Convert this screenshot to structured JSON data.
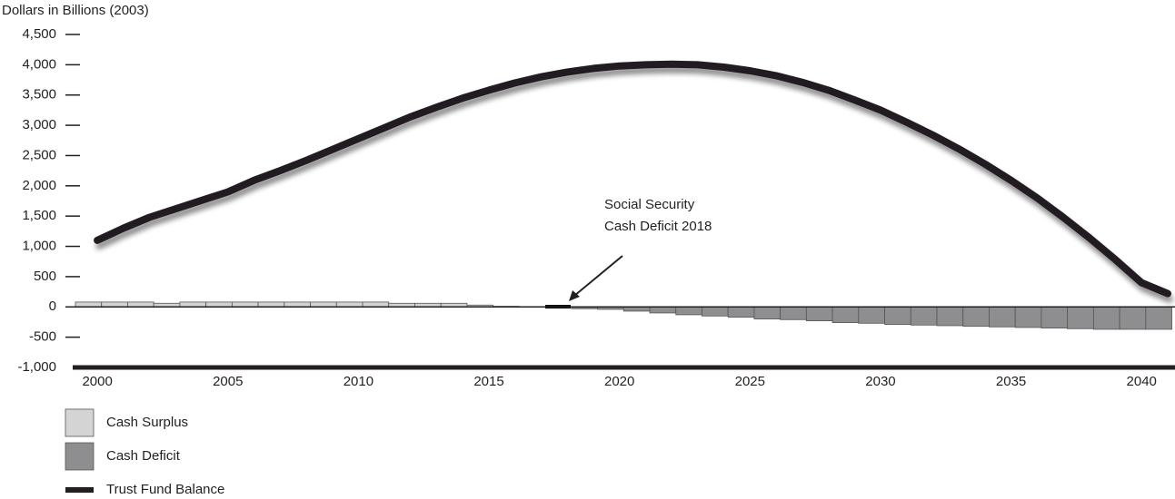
{
  "chart_data": {
    "type": "bar",
    "y_axis_label": "Dollars in Billions (2003)",
    "annotation": [
      "Social Security",
      "Cash Deficit 2018"
    ],
    "x": [
      2000,
      2001,
      2002,
      2003,
      2004,
      2005,
      2006,
      2007,
      2008,
      2009,
      2010,
      2011,
      2012,
      2013,
      2014,
      2015,
      2016,
      2017,
      2018,
      2019,
      2020,
      2021,
      2022,
      2023,
      2024,
      2025,
      2026,
      2027,
      2028,
      2029,
      2030,
      2031,
      2032,
      2033,
      2034,
      2035,
      2036,
      2037,
      2038,
      2039,
      2040,
      2041
    ],
    "series": [
      {
        "name": "Cash Surplus",
        "type": "bar",
        "color": "#d4d4d4",
        "values": [
          80,
          80,
          80,
          60,
          80,
          80,
          80,
          80,
          80,
          80,
          80,
          80,
          60,
          60,
          60,
          30,
          10,
          5,
          null,
          null,
          null,
          null,
          null,
          null,
          null,
          null,
          null,
          null,
          null,
          null,
          null,
          null,
          null,
          null,
          null,
          null,
          null,
          null,
          null,
          null,
          null,
          null
        ]
      },
      {
        "name": "Cash Deficit",
        "type": "bar",
        "color": "#8e8e90",
        "values": [
          null,
          null,
          null,
          null,
          null,
          null,
          null,
          null,
          null,
          null,
          null,
          null,
          null,
          null,
          null,
          null,
          null,
          null,
          null,
          -30,
          -40,
          -70,
          -100,
          -130,
          -150,
          -170,
          -200,
          -210,
          -230,
          -260,
          -270,
          -290,
          -300,
          -310,
          -320,
          -330,
          -340,
          -350,
          -360,
          -370,
          -370,
          -370
        ]
      },
      {
        "name": "Trust Fund Balance",
        "type": "line",
        "color": "#231f20",
        "values": [
          1100,
          1300,
          1480,
          1620,
          1760,
          1900,
          2090,
          2250,
          2420,
          2600,
          2780,
          2960,
          3140,
          3300,
          3450,
          3580,
          3700,
          3800,
          3880,
          3940,
          3980,
          4000,
          4010,
          4000,
          3960,
          3900,
          3820,
          3710,
          3580,
          3420,
          3250,
          3050,
          2840,
          2610,
          2360,
          2090,
          1800,
          1480,
          1140,
          780,
          400,
          220
        ]
      }
    ],
    "xlim": [
      1999.16,
      2041.28
    ],
    "xticks": [
      2000,
      2005,
      2010,
      2015,
      2020,
      2025,
      2030,
      2035,
      2040
    ],
    "ylim": [
      -1000,
      4500
    ],
    "yticks": [
      {
        "value": -1000,
        "label": "-1,000"
      },
      -500,
      0,
      500,
      {
        "value": 1000,
        "label": "1,000"
      },
      {
        "value": 1500,
        "label": "1,500"
      },
      {
        "value": 2000,
        "label": "2,000"
      },
      {
        "value": 2500,
        "label": "2,500"
      },
      {
        "value": 3000,
        "label": "3,000"
      },
      {
        "value": 3500,
        "label": "3,500"
      },
      {
        "value": 4000,
        "label": "4,000"
      },
      {
        "value": 4500,
        "label": "4,500"
      }
    ]
  }
}
